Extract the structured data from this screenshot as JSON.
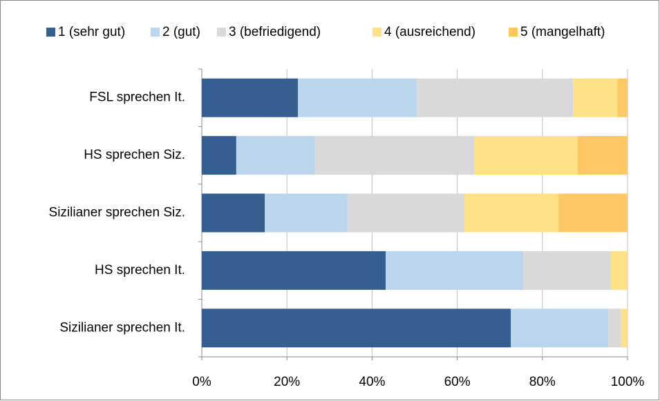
{
  "chart_data": {
    "type": "stacked_barh",
    "categories": [
      "FSL sprechen It.",
      "HS sprechen Siz.",
      "Sizilianer sprechen Siz.",
      "HS sprechen It.",
      "Sizilianer sprechen It."
    ],
    "series": [
      {
        "name": "1 (sehr gut)",
        "color": "#365f91",
        "values": [
          22.6,
          8.1,
          14.8,
          43.2,
          72.6
        ]
      },
      {
        "name": "2 (gut)",
        "color": "#bcd6ee",
        "values": [
          27.9,
          18.5,
          19.5,
          32.3,
          22.9
        ]
      },
      {
        "name": "3 (befriedigend)",
        "color": "#d9d9d9",
        "values": [
          36.7,
          37.4,
          27.4,
          20.6,
          3.0
        ]
      },
      {
        "name": "4 (ausreichend)",
        "color": "#ffe285",
        "values": [
          10.4,
          24.3,
          22.1,
          3.9,
          1.5
        ]
      },
      {
        "name": "5 (mangelhaft)",
        "color": "#ffc864",
        "values": [
          2.4,
          11.7,
          16.2,
          0,
          0
        ]
      }
    ],
    "xlim": [
      0,
      100
    ],
    "xticks": [
      {
        "value": 0,
        "label": "0%"
      },
      {
        "value": 20,
        "label": "20%"
      },
      {
        "value": 40,
        "label": "40%"
      },
      {
        "value": 60,
        "label": "60%"
      },
      {
        "value": 80,
        "label": "80%"
      },
      {
        "value": 100,
        "label": "100%"
      }
    ],
    "grid": true,
    "legend": "top"
  }
}
